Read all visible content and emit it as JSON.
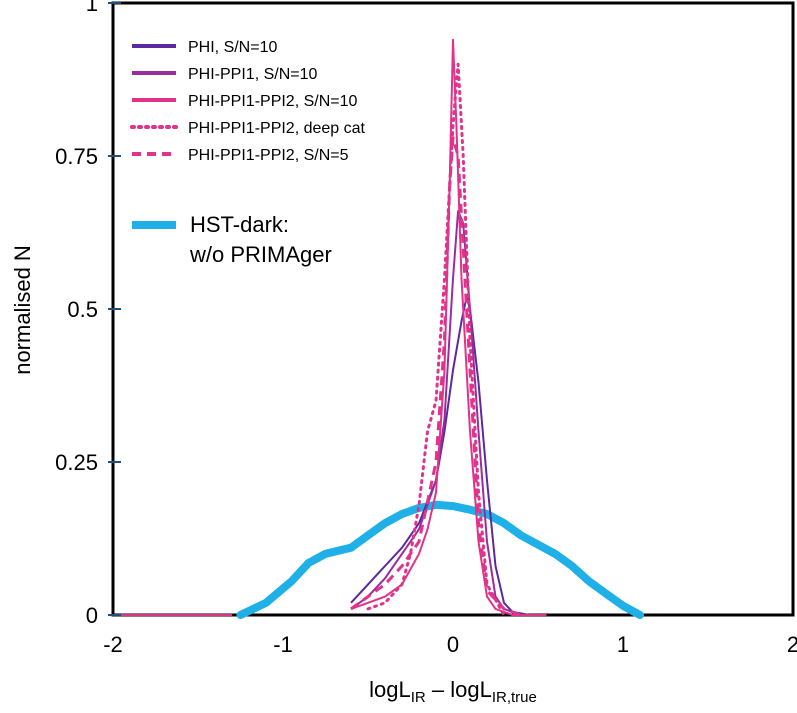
{
  "chart_data": {
    "type": "line",
    "title": "",
    "xlabel_main": "logL",
    "xlabel_sub1": "IR",
    "xlabel_mid": " – logL",
    "xlabel_sub2": "IR,true",
    "ylabel": "normalised N",
    "xlim": [
      -2,
      2
    ],
    "ylim": [
      0,
      1.0
    ],
    "xticks": [
      -2,
      -1,
      0,
      1,
      2
    ],
    "xtick_labels": [
      "-2",
      "-1",
      "0",
      "1",
      "2"
    ],
    "yticks": [
      0,
      0.25,
      0.5,
      0.75,
      1.0
    ],
    "ytick_labels": [
      "0",
      "0.25",
      "0.5",
      "0.75",
      "1"
    ],
    "grid": false,
    "legend_position": "top-left",
    "series": [
      {
        "name": "PHI, S/N=10",
        "color": "#5b2aa0",
        "style": "solid",
        "x": [
          -0.6,
          -0.5,
          -0.4,
          -0.3,
          -0.2,
          -0.1,
          -0.05,
          0.0,
          0.05,
          0.08,
          0.1,
          0.15,
          0.2,
          0.25,
          0.3,
          0.35,
          0.45
        ],
        "y": [
          0.02,
          0.05,
          0.08,
          0.11,
          0.15,
          0.22,
          0.3,
          0.4,
          0.48,
          0.52,
          0.5,
          0.38,
          0.22,
          0.08,
          0.02,
          0.005,
          0.0
        ]
      },
      {
        "name": "PHI-PPI1, S/N=10",
        "color": "#9b2c9e",
        "style": "solid",
        "x": [
          -0.6,
          -0.5,
          -0.4,
          -0.3,
          -0.2,
          -0.1,
          -0.05,
          0.0,
          0.03,
          0.06,
          0.1,
          0.15,
          0.2,
          0.25,
          0.3,
          0.4
        ],
        "y": [
          0.01,
          0.03,
          0.06,
          0.1,
          0.14,
          0.22,
          0.32,
          0.55,
          0.66,
          0.64,
          0.5,
          0.3,
          0.12,
          0.03,
          0.01,
          0.0
        ]
      },
      {
        "name": "PHI-PPI1-PPI2, S/N=10",
        "color": "#e0338a",
        "style": "solid",
        "x": [
          -0.6,
          -0.5,
          -0.4,
          -0.3,
          -0.2,
          -0.15,
          -0.1,
          -0.05,
          -0.02,
          0.0,
          0.02,
          0.05,
          0.1,
          0.15,
          0.2,
          0.25,
          0.3,
          0.35,
          0.55
        ],
        "y": [
          0.01,
          0.02,
          0.03,
          0.05,
          0.1,
          0.14,
          0.2,
          0.4,
          0.7,
          0.94,
          0.8,
          0.55,
          0.3,
          0.12,
          0.03,
          0.01,
          0.005,
          0.0,
          0.0
        ]
      },
      {
        "name": "PHI-PPI1-PPI2, deep cat",
        "color": "#e0338a",
        "style": "dotted",
        "x": [
          -0.5,
          -0.4,
          -0.3,
          -0.25,
          -0.2,
          -0.15,
          -0.1,
          -0.05,
          0.0,
          0.03,
          0.06,
          0.1,
          0.15,
          0.2,
          0.3
        ],
        "y": [
          0.01,
          0.02,
          0.05,
          0.1,
          0.18,
          0.3,
          0.35,
          0.55,
          0.8,
          0.9,
          0.75,
          0.45,
          0.2,
          0.05,
          0.0
        ]
      },
      {
        "name": "PHI-PPI1-PPI2, S/N=5",
        "color": "#e0338a",
        "style": "dashed",
        "x": [
          -0.6,
          -0.5,
          -0.4,
          -0.3,
          -0.2,
          -0.1,
          -0.05,
          -0.02,
          0.0,
          0.03,
          0.06,
          0.1,
          0.15,
          0.2,
          0.3,
          0.4
        ],
        "y": [
          0.01,
          0.03,
          0.05,
          0.08,
          0.12,
          0.25,
          0.45,
          0.7,
          0.78,
          0.75,
          0.6,
          0.4,
          0.15,
          0.04,
          0.01,
          0.0
        ]
      },
      {
        "name": "HST-dark:\nw/o PRIMAger",
        "legend_lines": [
          "HST-dark:",
          "w/o PRIMAger"
        ],
        "color": "#1eb0e6",
        "style": "thick",
        "x": [
          -1.25,
          -1.1,
          -0.95,
          -0.85,
          -0.75,
          -0.6,
          -0.5,
          -0.4,
          -0.3,
          -0.2,
          -0.1,
          0.0,
          0.1,
          0.2,
          0.3,
          0.4,
          0.5,
          0.6,
          0.7,
          0.8,
          0.9,
          1.0,
          1.1
        ],
        "y": [
          0.0,
          0.02,
          0.055,
          0.085,
          0.1,
          0.11,
          0.13,
          0.15,
          0.165,
          0.175,
          0.18,
          0.178,
          0.172,
          0.165,
          0.15,
          0.13,
          0.115,
          0.1,
          0.08,
          0.055,
          0.035,
          0.015,
          0.0
        ]
      },
      {
        "name": "",
        "color": "#e0338a",
        "style": "solid",
        "x": [
          -2.0,
          -1.3
        ],
        "y": [
          0.0,
          0.0
        ]
      }
    ]
  }
}
